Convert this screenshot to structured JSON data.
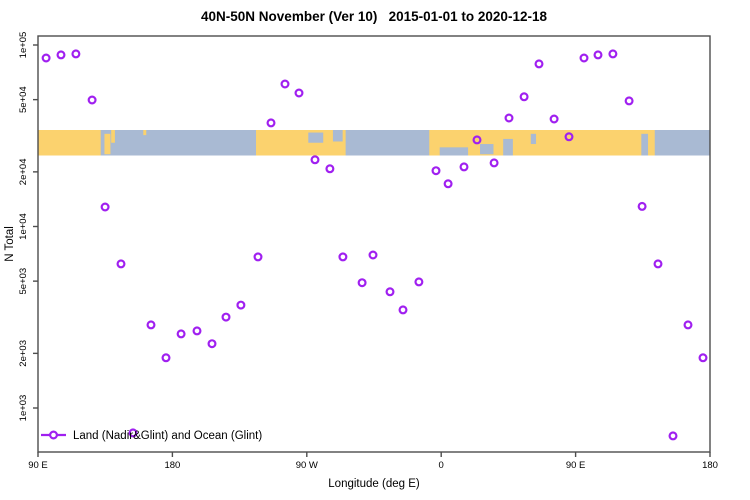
{
  "title": "40N-50N November (Ver 10)   2015-01-01 to 2020-12-18",
  "legend": {
    "label": "Land (Nadir&Glint) and Ocean (Glint)"
  },
  "x_axis": {
    "label": "Longitude (deg E)",
    "ticks": [
      {
        "offset_deg": 0,
        "label": "90 E"
      },
      {
        "offset_deg": 90,
        "label": "180"
      },
      {
        "offset_deg": 180,
        "label": "90 W"
      },
      {
        "offset_deg": 270,
        "label": "0"
      },
      {
        "offset_deg": 360,
        "label": "90 E"
      },
      {
        "offset_deg": 450,
        "label": "180"
      }
    ]
  },
  "y_axis": {
    "label": "N Total",
    "ticks": [
      {
        "value": 100000,
        "label": "1e+05"
      },
      {
        "value": 50000,
        "label": "5e+04"
      },
      {
        "value": 20000,
        "label": "2e+04"
      },
      {
        "value": 10000,
        "label": "1e+04"
      },
      {
        "value": 5000,
        "label": "5e+03"
      },
      {
        "value": 2000,
        "label": "2e+03"
      },
      {
        "value": 1000,
        "label": "1e+03"
      }
    ]
  },
  "colors": {
    "point": "#A020F0",
    "land": "#FBD26E",
    "ocean": "#A9BAD3",
    "axis": "#4d4d4d",
    "text": "#000000"
  },
  "map_band": {
    "lat_range": "40N-50N",
    "land_segments_deg": [
      [
        0,
        42
      ],
      [
        146,
        206
      ],
      [
        262,
        413
      ]
    ],
    "island_patches": [
      {
        "d0": 44.5,
        "d1": 48.5,
        "f0": 0.15,
        "f1": 0.95
      },
      {
        "d0": 49.0,
        "d1": 51.5,
        "f0": 0.0,
        "f1": 0.5
      },
      {
        "d0": 70.5,
        "d1": 72.5,
        "f0": 0.0,
        "f1": 0.2
      }
    ],
    "water_patches": [
      {
        "d0": 181.0,
        "d1": 191.0,
        "f0": 0.1,
        "f1": 0.5
      },
      {
        "d0": 197.5,
        "d1": 204.0,
        "f0": 0.0,
        "f1": 0.45
      },
      {
        "d0": 269.0,
        "d1": 288.0,
        "f0": 0.68,
        "f1": 1.0
      },
      {
        "d0": 296.0,
        "d1": 305.0,
        "f0": 0.55,
        "f1": 0.95
      },
      {
        "d0": 311.5,
        "d1": 318.0,
        "f0": 0.35,
        "f1": 1.0
      },
      {
        "d0": 330.0,
        "d1": 333.5,
        "f0": 0.15,
        "f1": 0.55
      },
      {
        "d0": 404.0,
        "d1": 408.5,
        "f0": 0.15,
        "f1": 1.0
      }
    ]
  },
  "chart_data": {
    "type": "scatter",
    "title": "40N-50N November (Ver 10)   2015-01-01 to 2020-12-18",
    "xlabel": "Longitude (deg E)",
    "ylabel": "N Total",
    "y_scale": "log10",
    "ylim": [
      570,
      112000
    ],
    "x_axis_note": "x runs 450 deg eastward from 90E (90E,180,90W,0,90E,180); data for 90E-180 plotted twice (wrapped)",
    "x_range_deg_offset": [
      0,
      450
    ],
    "legend_entry": "Land (Nadir&Glint) and Ocean (Glint)",
    "marker": "open-circle",
    "points": [
      {
        "offset_deg": 5.4,
        "n": 84800
      },
      {
        "offset_deg": 15.4,
        "n": 88200
      },
      {
        "offset_deg": 25.4,
        "n": 89300
      },
      {
        "offset_deg": 36.2,
        "n": 49800
      },
      {
        "offset_deg": 44.9,
        "n": 12800
      },
      {
        "offset_deg": 55.6,
        "n": 6220
      },
      {
        "offset_deg": 63.6,
        "n": 729
      },
      {
        "offset_deg": 75.7,
        "n": 2870
      },
      {
        "offset_deg": 85.7,
        "n": 1890
      },
      {
        "offset_deg": 95.8,
        "n": 2560
      },
      {
        "offset_deg": 106.5,
        "n": 2660
      },
      {
        "offset_deg": 116.5,
        "n": 2260
      },
      {
        "offset_deg": 125.9,
        "n": 3170
      },
      {
        "offset_deg": 135.9,
        "n": 3690
      },
      {
        "offset_deg": 147.3,
        "n": 6800
      },
      {
        "offset_deg": 156.0,
        "n": 37200
      },
      {
        "offset_deg": 165.4,
        "n": 61000
      },
      {
        "offset_deg": 174.8,
        "n": 54400
      },
      {
        "offset_deg": 185.5,
        "n": 23300
      },
      {
        "offset_deg": 195.5,
        "n": 20800
      },
      {
        "offset_deg": 204.2,
        "n": 6800
      },
      {
        "offset_deg": 217.0,
        "n": 4900
      },
      {
        "offset_deg": 224.3,
        "n": 6970
      },
      {
        "offset_deg": 235.7,
        "n": 4370
      },
      {
        "offset_deg": 244.4,
        "n": 3470
      },
      {
        "offset_deg": 255.1,
        "n": 4950
      },
      {
        "offset_deg": 266.5,
        "n": 20300
      },
      {
        "offset_deg": 274.6,
        "n": 17200
      },
      {
        "offset_deg": 285.3,
        "n": 21300
      },
      {
        "offset_deg": 294.0,
        "n": 30000
      },
      {
        "offset_deg": 305.4,
        "n": 22400
      },
      {
        "offset_deg": 315.4,
        "n": 39600
      },
      {
        "offset_deg": 325.5,
        "n": 51800
      },
      {
        "offset_deg": 335.5,
        "n": 78700
      },
      {
        "offset_deg": 345.6,
        "n": 39100
      },
      {
        "offset_deg": 355.6,
        "n": 31200
      },
      {
        "offset_deg": 365.6,
        "n": 84800
      },
      {
        "offset_deg": 375.0,
        "n": 88200
      },
      {
        "offset_deg": 385.0,
        "n": 89300
      },
      {
        "offset_deg": 395.8,
        "n": 49200
      },
      {
        "offset_deg": 404.5,
        "n": 12900
      },
      {
        "offset_deg": 415.2,
        "n": 6220
      },
      {
        "offset_deg": 425.2,
        "n": 702
      },
      {
        "offset_deg": 435.3,
        "n": 2870
      },
      {
        "offset_deg": 445.3,
        "n": 1890
      }
    ]
  }
}
